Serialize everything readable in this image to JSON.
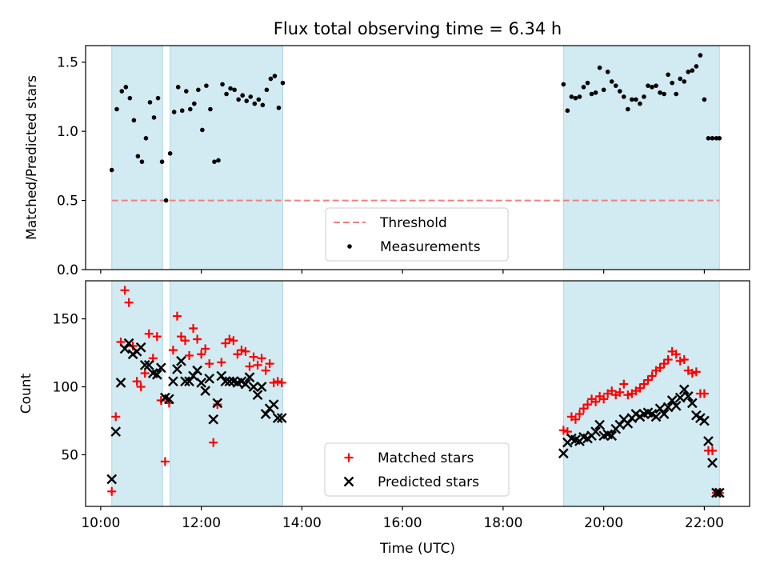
{
  "title": "Flux total observing time = 6.34 h",
  "colors": {
    "band": "#add8e6",
    "threshold": "#f08080",
    "measure": "#000000",
    "matched": "#ff0000",
    "predicted": "#000000"
  },
  "chart_data": [
    {
      "type": "scatter",
      "ylabel": "Matched/Predicted stars",
      "xlabel": "",
      "xlim": [
        9.7,
        22.9
      ],
      "ylim": [
        0.0,
        1.62
      ],
      "yticks": [
        0.0,
        0.5,
        1.0,
        1.5
      ],
      "ytick_labels": [
        "0.0",
        "0.5",
        "1.0",
        "1.5"
      ],
      "xtick_values": [
        10,
        12,
        14,
        16,
        18,
        20,
        22
      ],
      "bands": [
        [
          10.22,
          11.23
        ],
        [
          11.38,
          13.62
        ],
        [
          19.2,
          22.3
        ]
      ],
      "threshold": {
        "name": "Threshold",
        "value": 0.5,
        "x": [
          10.22,
          22.3
        ]
      },
      "legend": "lower-center",
      "series": [
        {
          "name": "Measurements",
          "x": [
            10.22,
            10.32,
            10.42,
            10.5,
            10.58,
            10.66,
            10.74,
            10.82,
            10.9,
            10.98,
            11.06,
            11.14,
            11.22,
            11.3,
            11.38,
            11.46,
            11.54,
            11.62,
            11.7,
            11.78,
            11.86,
            11.94,
            12.02,
            12.1,
            12.18,
            12.26,
            12.34,
            12.42,
            12.5,
            12.58,
            12.66,
            12.74,
            12.82,
            12.9,
            12.98,
            13.06,
            13.14,
            13.22,
            13.3,
            13.38,
            13.46,
            13.54,
            13.62,
            19.2,
            19.28,
            19.36,
            19.44,
            19.52,
            19.6,
            19.68,
            19.76,
            19.84,
            19.92,
            20.0,
            20.08,
            20.16,
            20.24,
            20.32,
            20.4,
            20.48,
            20.56,
            20.64,
            20.72,
            20.8,
            20.88,
            20.96,
            21.04,
            21.12,
            21.2,
            21.28,
            21.36,
            21.44,
            21.52,
            21.6,
            21.68,
            21.76,
            21.84,
            21.92,
            22.0,
            22.08,
            22.16,
            22.24,
            22.3
          ],
          "y": [
            0.72,
            1.16,
            1.29,
            1.32,
            1.24,
            1.08,
            0.82,
            0.78,
            0.95,
            1.21,
            1.1,
            1.24,
            0.78,
            0.5,
            0.84,
            1.14,
            1.32,
            1.15,
            1.29,
            1.16,
            1.2,
            1.3,
            1.01,
            1.33,
            1.16,
            0.78,
            0.79,
            1.34,
            1.27,
            1.31,
            1.3,
            1.23,
            1.26,
            1.22,
            1.25,
            1.2,
            1.23,
            1.19,
            1.3,
            1.38,
            1.4,
            1.17,
            1.35,
            1.34,
            1.15,
            1.25,
            1.24,
            1.25,
            1.32,
            1.35,
            1.27,
            1.28,
            1.46,
            1.3,
            1.43,
            1.36,
            1.33,
            1.29,
            1.25,
            1.16,
            1.23,
            1.23,
            1.2,
            1.25,
            1.33,
            1.32,
            1.33,
            1.28,
            1.27,
            1.41,
            1.35,
            1.27,
            1.38,
            1.36,
            1.43,
            1.44,
            1.47,
            1.55,
            1.23,
            0.95,
            0.95,
            0.95,
            0.95
          ]
        }
      ]
    },
    {
      "type": "scatter",
      "ylabel": "Count",
      "xlabel": "Time (UTC)",
      "xlim": [
        9.7,
        22.9
      ],
      "ylim": [
        12,
        178
      ],
      "yticks": [
        50,
        100,
        150
      ],
      "ytick_labels": [
        "50",
        "100",
        "150"
      ],
      "xticks": [
        10,
        12,
        14,
        16,
        18,
        20,
        22
      ],
      "xtick_labels": [
        "10:00",
        "12:00",
        "14:00",
        "16:00",
        "18:00",
        "20:00",
        "22:00"
      ],
      "bands": [
        [
          10.22,
          11.23
        ],
        [
          11.38,
          13.62
        ],
        [
          19.2,
          22.3
        ]
      ],
      "legend": "lower-center",
      "series": [
        {
          "name": "Matched stars",
          "x": [
            10.22,
            10.3,
            10.4,
            10.48,
            10.56,
            10.64,
            10.72,
            10.8,
            10.88,
            10.96,
            11.04,
            11.12,
            11.2,
            11.28,
            11.36,
            11.44,
            11.52,
            11.6,
            11.68,
            11.76,
            11.84,
            11.92,
            12.0,
            12.08,
            12.16,
            12.24,
            12.32,
            12.4,
            12.48,
            12.56,
            12.64,
            12.72,
            12.8,
            12.88,
            12.96,
            13.04,
            13.12,
            13.2,
            13.28,
            13.36,
            13.44,
            13.52,
            13.6,
            19.2,
            19.28,
            19.36,
            19.44,
            19.52,
            19.6,
            19.68,
            19.76,
            19.84,
            19.92,
            20.0,
            20.08,
            20.16,
            20.24,
            20.32,
            20.4,
            20.48,
            20.56,
            20.64,
            20.72,
            20.8,
            20.88,
            20.96,
            21.04,
            21.12,
            21.2,
            21.28,
            21.36,
            21.44,
            21.52,
            21.6,
            21.68,
            21.76,
            21.84,
            21.92,
            22.0,
            22.08,
            22.16,
            22.24,
            22.3
          ],
          "y": [
            23,
            78,
            133,
            171,
            162,
            130,
            104,
            100,
            110,
            139,
            121,
            137,
            90,
            45,
            88,
            127,
            152,
            137,
            134,
            123,
            143,
            135,
            124,
            128,
            117,
            59,
            87,
            118,
            132,
            135,
            134,
            124,
            127,
            126,
            115,
            122,
            116,
            121,
            112,
            117,
            103,
            104,
            103,
            68,
            67,
            78,
            76,
            80,
            84,
            87,
            91,
            89,
            93,
            91,
            95,
            97,
            94,
            96,
            102,
            94,
            95,
            97,
            99,
            102,
            105,
            108,
            112,
            114,
            117,
            120,
            126,
            124,
            119,
            120,
            112,
            110,
            111,
            95,
            95,
            53,
            53,
            22,
            22
          ]
        },
        {
          "name": "Predicted stars",
          "x": [
            10.22,
            10.3,
            10.4,
            10.48,
            10.56,
            10.64,
            10.72,
            10.8,
            10.88,
            10.96,
            11.04,
            11.12,
            11.2,
            11.28,
            11.36,
            11.44,
            11.52,
            11.6,
            11.68,
            11.76,
            11.84,
            11.92,
            12.0,
            12.08,
            12.16,
            12.24,
            12.32,
            12.4,
            12.48,
            12.56,
            12.64,
            12.72,
            12.8,
            12.88,
            12.96,
            13.04,
            13.12,
            13.2,
            13.28,
            13.36,
            13.44,
            13.52,
            13.6,
            19.2,
            19.28,
            19.36,
            19.44,
            19.52,
            19.6,
            19.68,
            19.76,
            19.84,
            19.92,
            20.0,
            20.08,
            20.16,
            20.24,
            20.32,
            20.4,
            20.48,
            20.56,
            20.64,
            20.72,
            20.8,
            20.88,
            20.96,
            21.04,
            21.12,
            21.2,
            21.28,
            21.36,
            21.44,
            21.52,
            21.6,
            21.68,
            21.76,
            21.84,
            21.92,
            22.0,
            22.08,
            22.16,
            22.24,
            22.3
          ],
          "y": [
            32,
            67,
            103,
            128,
            132,
            124,
            126,
            129,
            116,
            116,
            110,
            109,
            114,
            92,
            91,
            104,
            113,
            119,
            104,
            104,
            108,
            112,
            103,
            97,
            106,
            76,
            88,
            108,
            104,
            104,
            104,
            103,
            104,
            102,
            107,
            100,
            94,
            100,
            80,
            84,
            87,
            77,
            77,
            51,
            59,
            62,
            61,
            60,
            63,
            62,
            64,
            67,
            72,
            64,
            65,
            64,
            69,
            72,
            76,
            73,
            77,
            80,
            78,
            80,
            81,
            80,
            78,
            84,
            80,
            85,
            90,
            86,
            92,
            98,
            93,
            88,
            79,
            77,
            75,
            60,
            44,
            22,
            22
          ]
        }
      ]
    }
  ]
}
